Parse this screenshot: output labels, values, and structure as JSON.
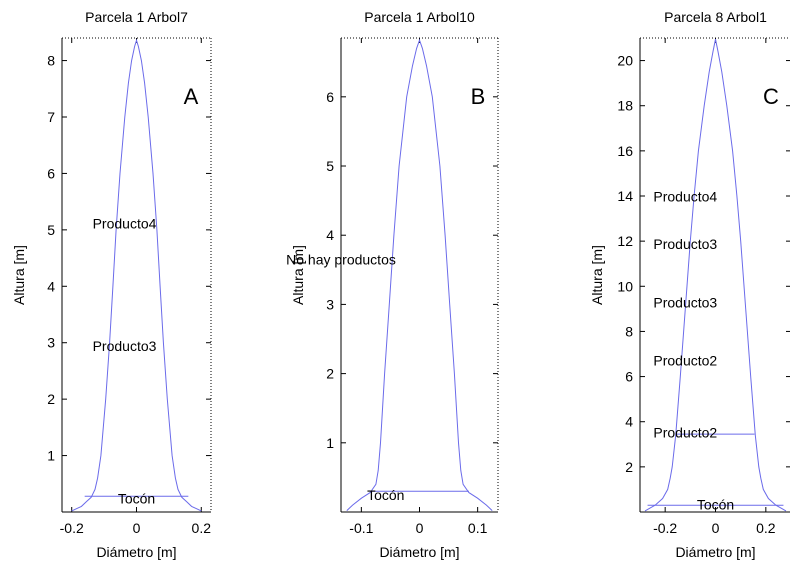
{
  "chart_data": [
    {
      "type": "line",
      "panel_letter": "A",
      "title": "Parcela 1 Arbol7",
      "xlabel": "Diámetro [m]",
      "ylabel": "Altura [m]",
      "xlim": [
        -0.23,
        0.23
      ],
      "ylim": [
        0,
        8.4
      ],
      "xticks": [
        -0.2,
        0,
        0.2
      ],
      "xtick_labels": [
        "-0.2",
        "0",
        "0.2"
      ],
      "yticks": [
        1,
        2,
        3,
        4,
        5,
        6,
        7,
        8
      ],
      "ytick_labels": [
        "1",
        "2",
        "3",
        "4",
        "5",
        "6",
        "7",
        "8"
      ],
      "color": "#6b6bea",
      "profile": {
        "height": [
          0.02,
          0.1,
          0.18,
          0.26,
          0.4,
          0.6,
          1.0,
          2.0,
          3.0,
          4.0,
          5.0,
          6.0,
          7.0,
          7.6,
          8.0,
          8.25,
          8.36
        ],
        "radius": [
          0.2,
          0.17,
          0.155,
          0.14,
          0.128,
          0.12,
          0.11,
          0.095,
          0.083,
          0.073,
          0.063,
          0.051,
          0.036,
          0.025,
          0.015,
          0.006,
          0.0
        ]
      },
      "lines": [
        {
          "label": "Tocón",
          "y": 0.28,
          "x1": -0.16,
          "x2": 0.16,
          "label_x": 0.0,
          "label_y": 0.15
        }
      ],
      "annotations": [
        {
          "text": "Producto4",
          "x": -0.037,
          "y": 5.02
        },
        {
          "text": "Producto3",
          "x": -0.037,
          "y": 2.85
        }
      ]
    },
    {
      "type": "line",
      "panel_letter": "B",
      "title": "Parcela 1 Arbol10",
      "xlabel": "Diámetro [m]",
      "ylabel": "Altura [m]",
      "xlim": [
        -0.135,
        0.135
      ],
      "ylim": [
        0,
        6.85
      ],
      "xticks": [
        -0.1,
        0,
        0.1
      ],
      "xtick_labels": [
        "-0.1",
        "0",
        "0.1"
      ],
      "yticks": [
        1,
        2,
        3,
        4,
        5,
        6
      ],
      "ytick_labels": [
        "1",
        "2",
        "3",
        "4",
        "5",
        "6"
      ],
      "color": "#6b6bea",
      "profile": {
        "height": [
          0.02,
          0.1,
          0.2,
          0.28,
          0.4,
          0.6,
          1.0,
          2.0,
          3.0,
          4.0,
          5.0,
          6.0,
          6.45,
          6.7,
          6.82
        ],
        "radius": [
          0.125,
          0.115,
          0.1,
          0.085,
          0.075,
          0.071,
          0.067,
          0.06,
          0.052,
          0.044,
          0.035,
          0.022,
          0.012,
          0.005,
          0.0
        ]
      },
      "lines": [
        {
          "label": "Tocón",
          "y": 0.3,
          "x1": -0.085,
          "x2": 0.085,
          "label_x": -0.058,
          "label_y": 0.17
        }
      ],
      "annotations": [
        {
          "text": "No hay productos",
          "x": -0.135,
          "y": 3.58
        }
      ]
    },
    {
      "type": "line",
      "panel_letter": "C",
      "title": "Parcela 8 Arbol1",
      "xlabel": "Diámetro [m]",
      "ylabel": "Altura [m]",
      "xlim": [
        -0.3,
        0.3
      ],
      "ylim": [
        0,
        21
      ],
      "xticks": [
        -0.2,
        0,
        0.2
      ],
      "xtick_labels": [
        "-0.2",
        "0",
        "0.2"
      ],
      "yticks": [
        2,
        4,
        6,
        8,
        10,
        12,
        14,
        16,
        18,
        20
      ],
      "ytick_labels": [
        "2",
        "4",
        "6",
        "8",
        "10",
        "12",
        "14",
        "16",
        "18",
        "20"
      ],
      "color": "#6b6bea",
      "profile": {
        "height": [
          0.05,
          0.3,
          0.6,
          1.0,
          1.5,
          2.0,
          3.4,
          6.0,
          9.0,
          12.0,
          14.0,
          16.0,
          18.0,
          19.5,
          20.4,
          20.95
        ],
        "radius": [
          0.28,
          0.24,
          0.21,
          0.19,
          0.18,
          0.172,
          0.158,
          0.14,
          0.12,
          0.1,
          0.085,
          0.068,
          0.045,
          0.025,
          0.01,
          0.0
        ]
      },
      "lines": [
        {
          "label": "Tocón",
          "y": 0.3,
          "x1": -0.27,
          "x2": 0.27,
          "label_x": 0.0,
          "label_y": 0.1
        },
        {
          "label": "",
          "y": 3.45,
          "x1": -0.155,
          "x2": 0.155
        }
      ],
      "annotations": [
        {
          "text": "Producto4",
          "x": -0.12,
          "y": 13.75
        },
        {
          "text": "Producto3",
          "x": -0.12,
          "y": 11.65
        },
        {
          "text": "Producto3",
          "x": -0.12,
          "y": 9.05
        },
        {
          "text": "Producto2",
          "x": -0.12,
          "y": 6.5
        },
        {
          "text": "Producto2",
          "x": -0.12,
          "y": 3.3
        }
      ]
    }
  ]
}
